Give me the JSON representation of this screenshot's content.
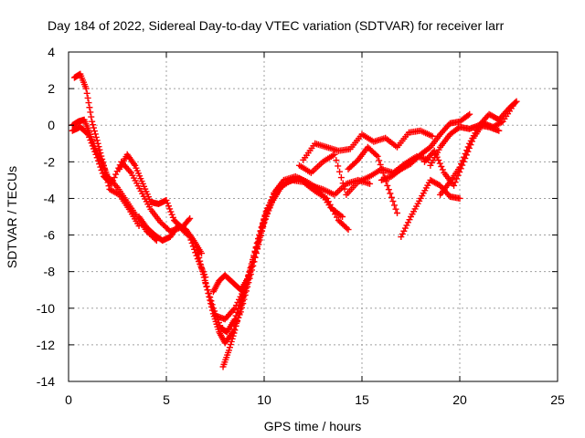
{
  "chart_data": {
    "type": "scatter",
    "title": "Day 184 of 2022, Sidereal Day-to-day VTEC variation (SDTVAR) for receiver larr",
    "xlabel": "GPS time / hours",
    "ylabel": "SDTVAR / TECUs",
    "xlim": [
      0,
      25
    ],
    "ylim": [
      -14,
      4
    ],
    "xticks": [
      0,
      5,
      10,
      15,
      20,
      25
    ],
    "yticks": [
      -14,
      -12,
      -10,
      -8,
      -6,
      -4,
      -2,
      0,
      2,
      4
    ],
    "grid": true,
    "marker": "plus",
    "series_color": "#ff0000",
    "tracks": [
      {
        "x": [
          0.2,
          0.5,
          0.8,
          1.1,
          1.4,
          1.7,
          2.0,
          2.5,
          3.0,
          3.5,
          4.0,
          4.5
        ],
        "y": [
          0.0,
          0.2,
          0.3,
          -0.5,
          -1.4,
          -2.0,
          -2.8,
          -3.4,
          -4.2,
          -5.0,
          -5.8,
          -6.3
        ]
      },
      {
        "x": [
          0.3,
          0.6,
          0.9,
          1.2,
          1.5,
          1.8,
          2.1,
          2.6,
          3.1,
          3.6
        ],
        "y": [
          2.6,
          2.8,
          2.0,
          0.2,
          -1.0,
          -2.2,
          -3.5,
          -3.8,
          -4.6,
          -5.5
        ]
      },
      {
        "x": [
          0.2,
          0.6,
          1.0,
          1.4,
          1.8,
          2.2,
          2.7,
          3.2,
          3.7,
          4.2,
          4.7,
          5.2,
          5.7,
          6.2,
          6.6,
          7.0
        ],
        "y": [
          -0.3,
          -0.1,
          -0.5,
          -1.6,
          -2.8,
          -3.2,
          -2.0,
          -2.6,
          -3.6,
          -4.6,
          -5.3,
          -5.8,
          -5.6,
          -6.1,
          -7.3,
          -8.3
        ]
      },
      {
        "x": [
          2.6,
          3.0,
          3.4,
          3.8,
          4.2,
          4.6,
          5.0,
          5.4,
          5.8,
          6.2
        ],
        "y": [
          -2.4,
          -1.6,
          -2.2,
          -3.2,
          -4.2,
          -4.3,
          -4.1,
          -5.2,
          -5.6,
          -5.1
        ]
      },
      {
        "x": [
          3.6,
          4.0,
          4.4,
          4.8,
          5.2,
          5.6,
          6.0,
          6.4,
          6.8
        ],
        "y": [
          -5.0,
          -5.6,
          -6.0,
          -6.3,
          -6.1,
          -5.5,
          -5.7,
          -6.3,
          -7.0
        ]
      },
      {
        "x": [
          6.5,
          6.8,
          7.1,
          7.4,
          7.7,
          8.0,
          8.4,
          8.8,
          9.2,
          9.6,
          10.0,
          10.4,
          10.8
        ],
        "y": [
          -6.5,
          -7.8,
          -9.0,
          -10.3,
          -11.3,
          -11.9,
          -11.3,
          -10.2,
          -8.6,
          -7.0,
          -5.3,
          -4.2,
          -3.5
        ]
      },
      {
        "x": [
          7.0,
          7.4,
          7.8,
          8.1,
          8.5,
          8.9,
          9.3,
          9.7,
          10.1,
          10.5,
          11.0
        ],
        "y": [
          -8.6,
          -10.0,
          -11.1,
          -11.3,
          -10.6,
          -9.3,
          -7.8,
          -6.2,
          -4.8,
          -3.8,
          -3.1
        ]
      },
      {
        "x": [
          7.9,
          8.2,
          8.5,
          8.9,
          9.3,
          9.7,
          10.1,
          10.6,
          11.2,
          11.8,
          12.4,
          13.0,
          13.6,
          14.2,
          14.8,
          15.4
        ],
        "y": [
          -13.2,
          -12.3,
          -11.2,
          -9.6,
          -8.0,
          -6.2,
          -4.7,
          -3.6,
          -3.1,
          -2.9,
          -3.3,
          -3.5,
          -3.8,
          -3.2,
          -3.0,
          -3.2
        ]
      },
      {
        "x": [
          7.4,
          7.7,
          8.0,
          8.4,
          8.8,
          9.2,
          9.7,
          10.2,
          10.8,
          11.4,
          12.0,
          12.6,
          13.2,
          13.8,
          14.3
        ],
        "y": [
          -9.1,
          -8.5,
          -8.2,
          -8.6,
          -9.0,
          -8.3,
          -6.4,
          -4.6,
          -3.4,
          -3.0,
          -3.1,
          -3.6,
          -4.0,
          -5.2,
          -5.7
        ]
      },
      {
        "x": [
          7.5,
          8.0,
          8.5,
          9.0,
          9.5,
          10.0,
          10.5,
          11.0,
          11.6,
          12.2,
          12.8,
          13.4,
          14.0
        ],
        "y": [
          -10.4,
          -10.6,
          -10.0,
          -8.9,
          -7.2,
          -5.2,
          -3.7,
          -3.0,
          -2.8,
          -3.1,
          -3.5,
          -4.5,
          -5.0
        ]
      },
      {
        "x": [
          11.8,
          12.4,
          13.0,
          13.6,
          14.2,
          14.8,
          15.4,
          16.0,
          16.6,
          17.2,
          17.8,
          18.4
        ],
        "y": [
          -2.2,
          -2.6,
          -2.0,
          -1.6,
          -3.8,
          -3.1,
          -2.8,
          -2.4,
          -2.6,
          -2.1,
          -1.7,
          -1.9
        ]
      },
      {
        "x": [
          12.0,
          12.6,
          13.2,
          13.8,
          14.4,
          15.0,
          15.6,
          16.2,
          16.8,
          17.4,
          18.0,
          18.6
        ],
        "y": [
          -1.9,
          -1.0,
          -1.2,
          -1.4,
          -1.3,
          -0.5,
          -0.9,
          -0.7,
          -1.2,
          -0.4,
          -0.3,
          -0.6
        ]
      },
      {
        "x": [
          14.3,
          14.8,
          15.3,
          15.8,
          16.3,
          16.8
        ],
        "y": [
          -2.4,
          -1.9,
          -1.2,
          -1.7,
          -3.3,
          -4.8
        ]
      },
      {
        "x": [
          16.0,
          16.5,
          17.0,
          17.5,
          18.0,
          18.5,
          19.0,
          19.5,
          20.0,
          20.5
        ],
        "y": [
          -3.0,
          -2.8,
          -2.4,
          -2.1,
          -1.6,
          -1.2,
          -0.5,
          0.1,
          0.2,
          0.6
        ]
      },
      {
        "x": [
          17.0,
          17.5,
          18.0,
          18.5,
          19.0,
          19.5,
          20.0
        ],
        "y": [
          -6.1,
          -5.0,
          -4.0,
          -3.0,
          -3.3,
          -3.9,
          -4.0
        ]
      },
      {
        "x": [
          18.2,
          18.7,
          19.2,
          19.7,
          20.2,
          20.7,
          21.2,
          21.7,
          22.2,
          22.8
        ],
        "y": [
          -2.0,
          -1.4,
          -2.6,
          -3.3,
          -2.0,
          -0.7,
          0.1,
          -0.1,
          0.2,
          1.2
        ]
      },
      {
        "x": [
          19.0,
          19.5,
          20.0,
          20.5,
          21.0,
          21.5,
          22.0,
          22.5,
          22.9
        ],
        "y": [
          -3.8,
          -3.1,
          -2.3,
          -1.0,
          0.0,
          0.6,
          0.3,
          0.9,
          1.3
        ]
      },
      {
        "x": [
          18.5,
          19.0,
          19.5,
          20.0,
          20.5,
          21.0,
          21.5,
          22.0
        ],
        "y": [
          -2.2,
          -1.2,
          -0.5,
          -0.1,
          -0.2,
          0.0,
          -0.1,
          -0.3
        ]
      }
    ]
  }
}
